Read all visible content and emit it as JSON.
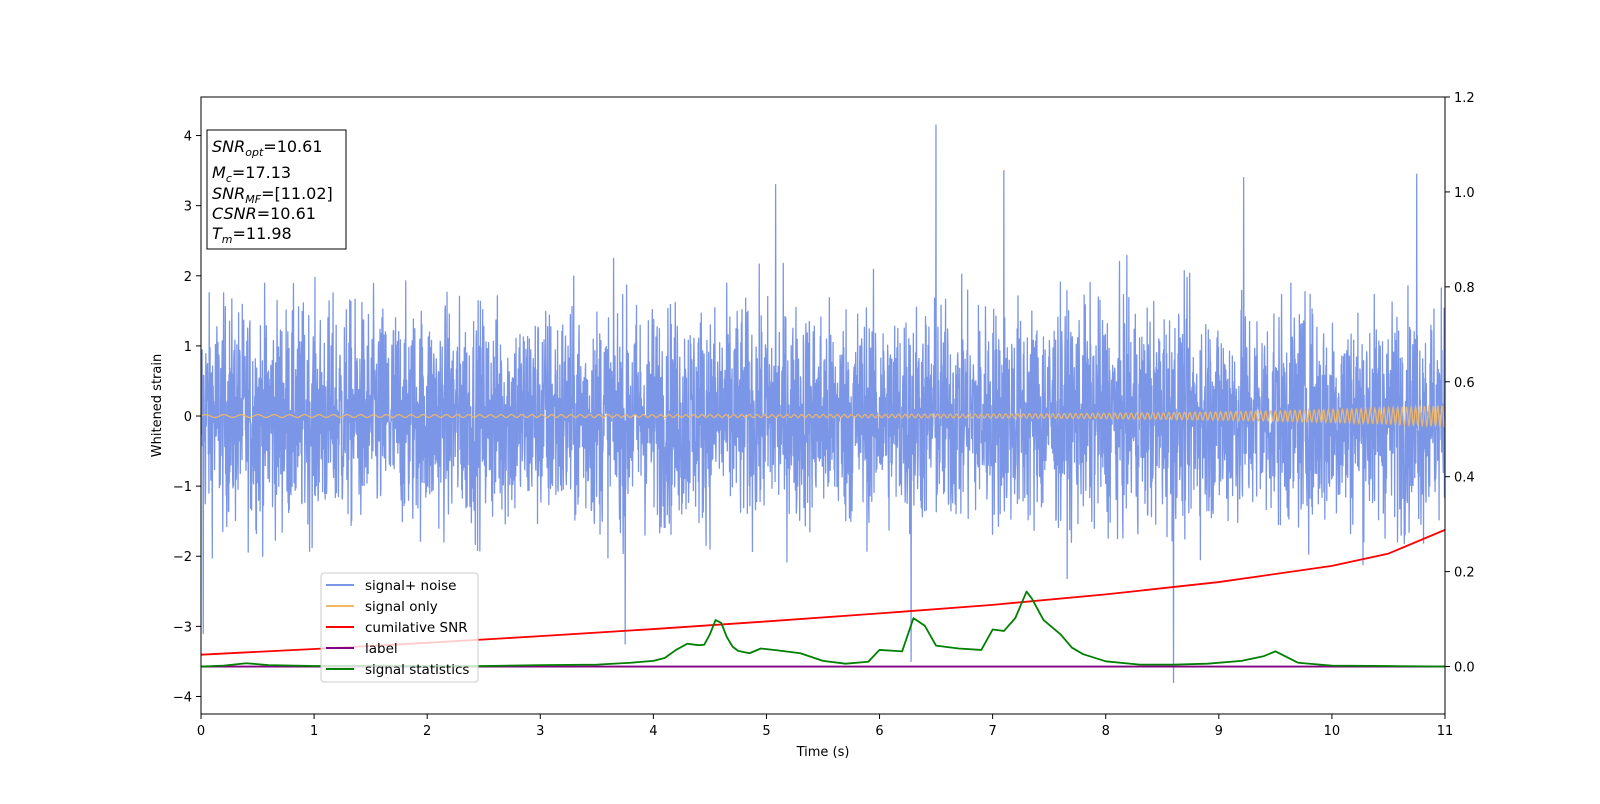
{
  "chart_data": {
    "type": "line",
    "xlabel": "Time (s)",
    "ylabel": "Whitened strain",
    "xlim": [
      0,
      11
    ],
    "ylim": [
      -4.25,
      4.55
    ],
    "y2lim": [
      -0.1,
      1.2
    ],
    "x_ticks": [
      "0",
      "1",
      "2",
      "3",
      "4",
      "5",
      "6",
      "7",
      "8",
      "9",
      "10",
      "11"
    ],
    "y_ticks": [
      "−4",
      "−3",
      "−2",
      "−1",
      "0",
      "1",
      "2",
      "3",
      "4"
    ],
    "y2_ticks": [
      "0.0",
      "0.2",
      "0.4",
      "0.6",
      "0.8",
      "1.0",
      "1.2"
    ],
    "grid": false,
    "legend_position": "lower-left",
    "info_box": [
      {
        "sym": "SNR",
        "sub": "opt",
        "val": "=10.61"
      },
      {
        "sym": "M",
        "sub": "c",
        "val": "=17.13"
      },
      {
        "sym": "SNR",
        "sub": "MF",
        "val": "=[11.02]"
      },
      {
        "sym": "CSNR",
        "sub": "",
        "val": "=10.61"
      },
      {
        "sym": "T",
        "sub": "m",
        "val": "=11.98"
      }
    ],
    "series": [
      {
        "name": "signal+ noise",
        "color": "#7b96e6",
        "axis": "left",
        "kind": "noise",
        "envelope_typical": [
          -1.9,
          2.2
        ],
        "spikes": [
          [
            0.02,
            -3.1
          ],
          [
            6.5,
            4.15
          ],
          [
            8.6,
            -3.8
          ],
          [
            10.75,
            3.45
          ],
          [
            5.08,
            3.3
          ],
          [
            6.28,
            -3.5
          ],
          [
            3.75,
            -3.25
          ],
          [
            7.1,
            3.5
          ],
          [
            9.22,
            3.4
          ]
        ]
      },
      {
        "name": "signal only",
        "color": "#f5b860",
        "axis": "left",
        "kind": "chirp",
        "amplitude_start": 0.02,
        "amplitude_end": 0.15
      },
      {
        "name": "cumilative SNR",
        "color": "#ff0000",
        "axis": "right",
        "x": [
          0,
          1,
          2,
          3,
          4,
          5,
          6,
          7,
          8,
          9,
          10,
          10.5,
          11
        ],
        "y": [
          0.025,
          0.037,
          0.05,
          0.064,
          0.079,
          0.095,
          0.112,
          0.13,
          0.152,
          0.178,
          0.212,
          0.238,
          0.288
        ]
      },
      {
        "name": "label",
        "color": "#800080",
        "axis": "right",
        "x": [
          0,
          11
        ],
        "y": [
          0,
          0
        ]
      },
      {
        "name": "signal statistics",
        "color": "#008000",
        "axis": "right",
        "x": [
          0,
          0.2,
          0.4,
          0.6,
          1.0,
          1.5,
          2.0,
          2.5,
          3.0,
          3.5,
          3.8,
          4.0,
          4.1,
          4.2,
          4.3,
          4.4,
          4.45,
          4.5,
          4.55,
          4.6,
          4.65,
          4.7,
          4.75,
          4.85,
          4.95,
          5.1,
          5.3,
          5.5,
          5.7,
          5.9,
          6.0,
          6.2,
          6.3,
          6.4,
          6.5,
          6.7,
          6.9,
          7.0,
          7.1,
          7.2,
          7.3,
          7.35,
          7.45,
          7.6,
          7.7,
          7.8,
          8.0,
          8.3,
          8.6,
          8.9,
          9.2,
          9.4,
          9.5,
          9.7,
          10.0,
          10.5,
          11.0
        ],
        "y": [
          0.0,
          0.002,
          0.007,
          0.003,
          0.001,
          0.002,
          0.001,
          0.001,
          0.003,
          0.004,
          0.008,
          0.012,
          0.018,
          0.035,
          0.048,
          0.045,
          0.046,
          0.068,
          0.098,
          0.092,
          0.062,
          0.042,
          0.033,
          0.028,
          0.038,
          0.034,
          0.028,
          0.012,
          0.006,
          0.01,
          0.035,
          0.032,
          0.102,
          0.086,
          0.044,
          0.038,
          0.035,
          0.078,
          0.075,
          0.102,
          0.158,
          0.142,
          0.098,
          0.068,
          0.04,
          0.026,
          0.011,
          0.004,
          0.004,
          0.006,
          0.012,
          0.022,
          0.032,
          0.008,
          0.002,
          0.001,
          0.0
        ]
      }
    ]
  }
}
